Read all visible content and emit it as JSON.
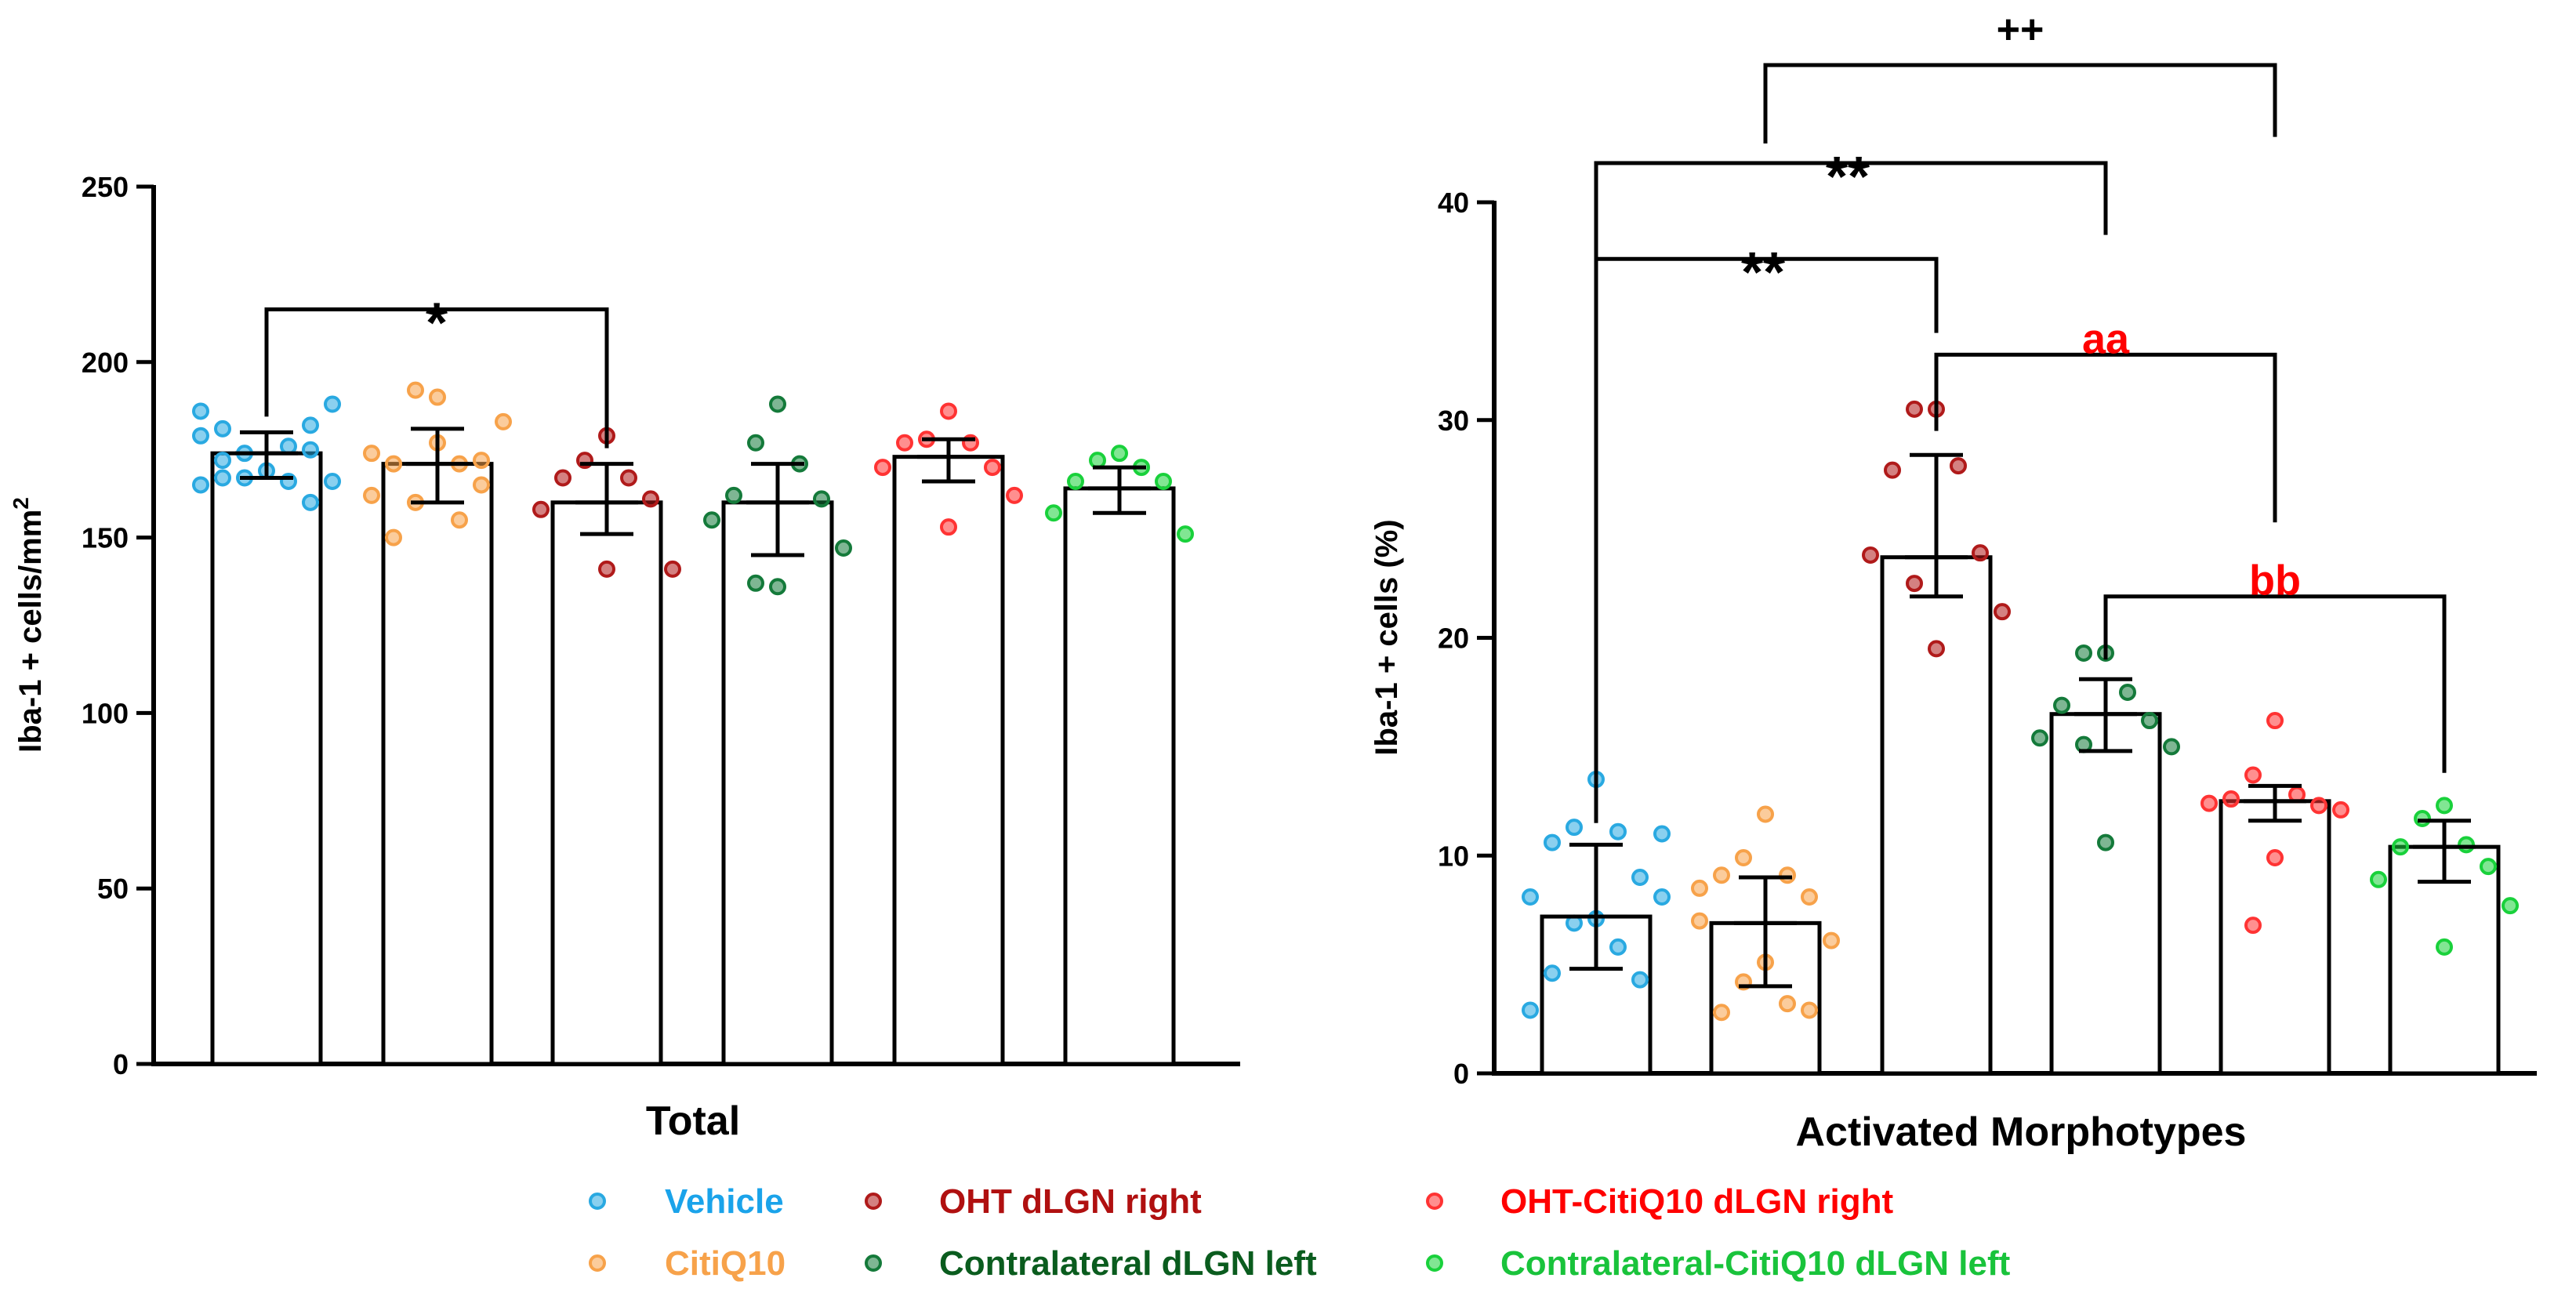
{
  "colors": {
    "vehicle": "#29a9e1",
    "citiq10": "#f7a24a",
    "oht": "#b01a1a",
    "contra": "#147a3a",
    "ohtciti": "#ff3333",
    "contraciti": "#19d13b",
    "sig_red": "#ff0000"
  },
  "legend": [
    {
      "label": "Vehicle",
      "color": "#1aa3ea",
      "dot": "#29a9e1"
    },
    {
      "label": "CitiQ10",
      "color": "#f7a24a",
      "dot": "#f7a24a"
    },
    {
      "label": "OHT dLGN right",
      "color": "#b01010",
      "dot": "#b01a1a"
    },
    {
      "label": "Contralateral dLGN left",
      "color": "#0a5c1e",
      "dot": "#147a3a"
    },
    {
      "label": "OHT-CitiQ10 dLGN right",
      "color": "#ff0000",
      "dot": "#ff3333"
    },
    {
      "label": "Contralateral-CitiQ10 dLGN left",
      "color": "#19c33b",
      "dot": "#19d13b"
    }
  ],
  "chart_data": [
    {
      "type": "bar",
      "title": "",
      "xlabel": "Total",
      "ylabel": "Iba-1 + cells/mm",
      "ylabel_sup": "2",
      "ylim": [
        0,
        250
      ],
      "yticks": [
        0,
        50,
        100,
        150,
        200,
        250
      ],
      "groups": [
        "Vehicle",
        "CitiQ10",
        "OHT dLGN right",
        "Contralateral dLGN left",
        "OHT-CitiQ10 dLGN right",
        "Contralateral-CitiQ10 dLGN left"
      ],
      "values": [
        174,
        171,
        160,
        160,
        173,
        164
      ],
      "errors": [
        {
          "low": 167,
          "high": 180
        },
        {
          "low": 160,
          "high": 181
        },
        {
          "low": 151,
          "high": 171
        },
        {
          "low": 145,
          "high": 171
        },
        {
          "low": 166,
          "high": 178
        },
        {
          "low": 157,
          "high": 170
        }
      ],
      "points": [
        [
          169,
          174,
          176,
          181,
          182,
          186,
          188,
          167,
          166,
          172,
          179,
          160,
          165,
          166,
          167,
          175
        ],
        [
          190,
          192,
          171,
          171,
          165,
          174,
          183,
          177,
          160,
          155,
          150,
          172,
          162
        ],
        [
          179,
          172,
          167,
          167,
          161,
          158,
          141,
          141
        ],
        [
          188,
          177,
          171,
          162,
          161,
          155,
          147,
          136,
          137
        ],
        [
          186,
          178,
          177,
          177,
          170,
          170,
          162,
          153
        ],
        [
          174,
          172,
          170,
          166,
          166,
          157,
          151
        ]
      ],
      "significance": [
        {
          "from": 0,
          "to": 2,
          "label": "*",
          "level": 215,
          "color": "#000000"
        }
      ]
    },
    {
      "type": "bar",
      "title": "",
      "xlabel": "Activated Morphotypes",
      "ylabel": "Iba-1 + cells (%)",
      "ylim": [
        0,
        40
      ],
      "yticks": [
        0,
        10,
        20,
        30,
        40
      ],
      "groups": [
        "Vehicle",
        "CitiQ10",
        "OHT dLGN right",
        "Contralateral dLGN left",
        "OHT-CitiQ10 dLGN right",
        "Contralateral-CitiQ10 dLGN left"
      ],
      "values": [
        7.2,
        6.9,
        23.7,
        16.5,
        12.5,
        10.4
      ],
      "errors": [
        {
          "low": 4.8,
          "high": 10.5
        },
        {
          "low": 4.0,
          "high": 9.0
        },
        {
          "low": 21.9,
          "high": 28.4
        },
        {
          "low": 14.8,
          "high": 18.1
        },
        {
          "low": 11.6,
          "high": 13.2
        },
        {
          "low": 8.8,
          "high": 11.6
        }
      ],
      "points": [
        [
          13.5,
          11.3,
          11.1,
          10.6,
          9.0,
          8.1,
          8.1,
          7.1,
          6.9,
          5.8,
          4.6,
          4.3,
          2.9,
          11.0
        ],
        [
          11.9,
          9.9,
          9.1,
          9.1,
          8.1,
          7.0,
          6.1,
          5.1,
          4.2,
          3.2,
          2.8,
          2.9,
          8.5
        ],
        [
          30.5,
          30.5,
          27.9,
          27.7,
          23.9,
          23.8,
          21.2,
          19.5,
          22.5
        ],
        [
          19.3,
          19.3,
          17.5,
          16.9,
          16.2,
          15.4,
          15.0,
          10.6,
          15.1
        ],
        [
          16.2,
          13.7,
          12.8,
          12.6,
          12.3,
          12.4,
          12.1,
          9.9,
          6.8
        ],
        [
          12.3,
          11.7,
          10.5,
          10.4,
          9.5,
          8.9,
          7.7,
          5.8
        ]
      ],
      "significance": [
        {
          "from": 0,
          "to": 2,
          "label": "**",
          "level": 37.4,
          "drop_to": 34.0,
          "color": "#000000"
        },
        {
          "from": 0,
          "to": 3,
          "label": "**",
          "level": 41.8,
          "drop_to": 38.5,
          "color": "#000000"
        },
        {
          "from": 1,
          "to": 4,
          "label": "++",
          "level": 46.3,
          "drop_to": 43.0,
          "color": "#000000"
        },
        {
          "from": 2,
          "to": 4,
          "label": "aa",
          "level": 33.0,
          "drop_to": 25.3,
          "color": "#ff0000"
        },
        {
          "from": 3,
          "to": 5,
          "label": "bb",
          "level": 21.9,
          "drop_to": 13.8,
          "color": "#ff0000"
        }
      ]
    }
  ]
}
